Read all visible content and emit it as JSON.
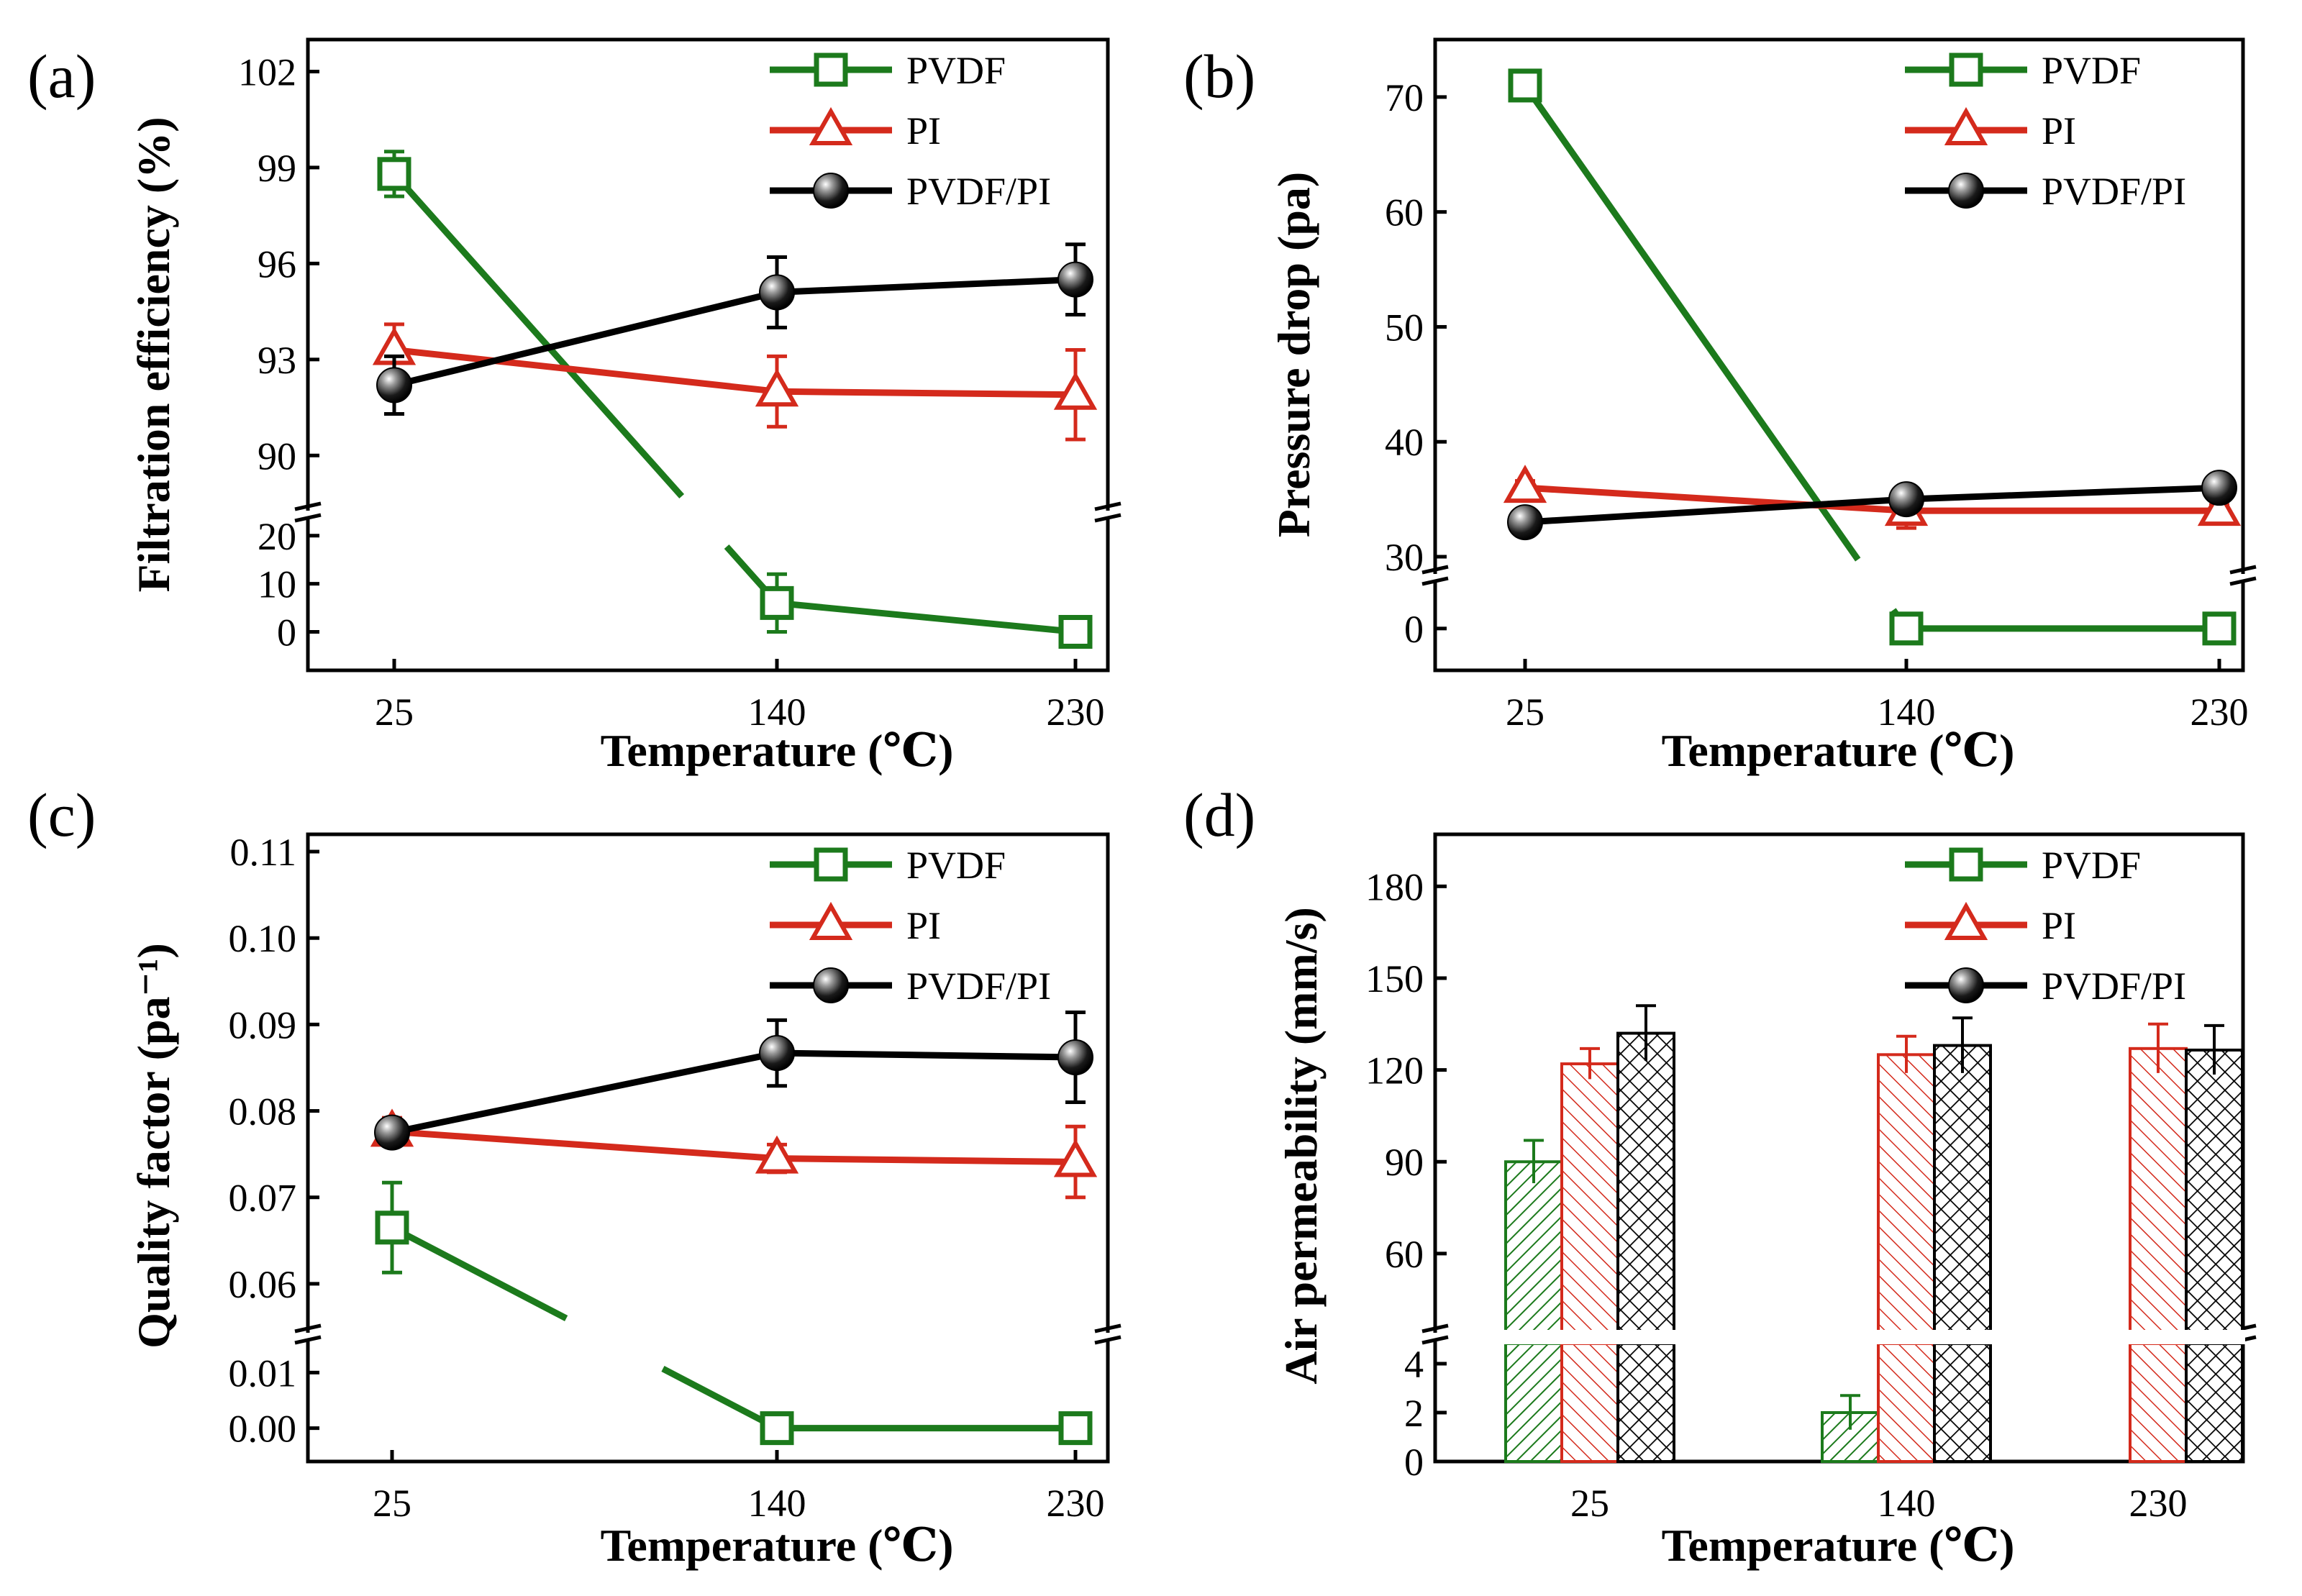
{
  "colors": {
    "PVDF": "#1c7a1c",
    "PI": "#d42a1c",
    "PVDF/PI": "#000000"
  },
  "chart_data": [
    {
      "id": "a",
      "panel_label": "(a)",
      "type": "line",
      "xlabel": "Temperature (℃)",
      "ylabel": "Filtration efficiency (%)",
      "categories": [
        "25",
        "140",
        "230"
      ],
      "y_upper_ticks": [
        "90",
        "93",
        "96",
        "99",
        "102"
      ],
      "y_lower_ticks": [
        "0",
        "10",
        "20"
      ],
      "y_upper_range": [
        88.5,
        103
      ],
      "y_lower_range": [
        -8,
        24
      ],
      "legend": [
        "PVDF",
        "PI",
        "PVDF/PI"
      ],
      "legend_position": "top-right",
      "series": [
        {
          "name": "PVDF",
          "marker": "square",
          "values": [
            98.8,
            6.0,
            0.0
          ],
          "errors": [
            0.7,
            6.0,
            0.0
          ]
        },
        {
          "name": "PI",
          "marker": "triangle",
          "values": [
            93.3,
            92.0,
            91.9
          ],
          "errors": [
            0.8,
            1.1,
            1.4
          ]
        },
        {
          "name": "PVDF/PI",
          "marker": "sphere",
          "values": [
            92.2,
            95.1,
            95.5
          ],
          "errors": [
            0.9,
            1.1,
            1.1
          ]
        }
      ]
    },
    {
      "id": "b",
      "panel_label": "(b)",
      "type": "line",
      "xlabel": "Temperature (℃)",
      "ylabel": "Pressure drop (pa)",
      "categories": [
        "25",
        "140",
        "230"
      ],
      "y_upper_ticks": [
        "30",
        "40",
        "50",
        "60",
        "70"
      ],
      "y_lower_ticks": [
        "0"
      ],
      "y_upper_range": [
        29,
        75
      ],
      "y_lower_range": [
        -3,
        3.5
      ],
      "legend": [
        "PVDF",
        "PI",
        "PVDF/PI"
      ],
      "legend_position": "top-right",
      "series": [
        {
          "name": "PVDF",
          "marker": "square",
          "values": [
            71,
            0,
            0
          ],
          "errors": [
            0.8,
            0,
            0
          ]
        },
        {
          "name": "PI",
          "marker": "triangle",
          "values": [
            36,
            34,
            34
          ],
          "errors": [
            0.6,
            1.5,
            0.5
          ]
        },
        {
          "name": "PVDF/PI",
          "marker": "sphere",
          "values": [
            33,
            35,
            36
          ],
          "errors": [
            0.6,
            0.9,
            0.6
          ]
        }
      ]
    },
    {
      "id": "c",
      "panel_label": "(c)",
      "type": "line",
      "xlabel": "Temperature (℃)",
      "ylabel": "Quality factor (pa⁻¹)",
      "categories": [
        "25",
        "140",
        "230"
      ],
      "y_upper_ticks": [
        "0.06",
        "0.07",
        "0.08",
        "0.09",
        "0.10",
        "0.11"
      ],
      "y_lower_ticks": [
        "0.00",
        "0.01"
      ],
      "y_upper_range": [
        0.055,
        0.112
      ],
      "y_lower_range": [
        -0.006,
        0.016
      ],
      "legend": [
        "PVDF",
        "PI",
        "PVDF/PI"
      ],
      "legend_position": "top-right",
      "series": [
        {
          "name": "PVDF",
          "marker": "square",
          "values": [
            0.0665,
            0.0,
            0.0
          ],
          "errors": [
            0.0052,
            0,
            0
          ]
        },
        {
          "name": "PI",
          "marker": "triangle",
          "values": [
            0.0776,
            0.0745,
            0.0741
          ],
          "errors": [
            0.0016,
            0.0016,
            0.0041
          ]
        },
        {
          "name": "PVDF/PI",
          "marker": "sphere",
          "values": [
            0.0775,
            0.0867,
            0.0862
          ],
          "errors": [
            0.0012,
            0.0038,
            0.0052
          ]
        }
      ]
    },
    {
      "id": "d",
      "panel_label": "(d)",
      "type": "bar",
      "xlabel": "Temperature (℃)",
      "ylabel": "Air permeability (mm/s)",
      "categories": [
        "25",
        "140",
        "230"
      ],
      "y_upper_ticks": [
        "60",
        "90",
        "120",
        "150",
        "180"
      ],
      "y_lower_ticks": [
        "0",
        "2",
        "4"
      ],
      "y_upper_range": [
        36,
        197
      ],
      "y_lower_range": [
        0,
        5
      ],
      "legend": [
        "PVDF",
        "PI",
        "PVDF/PI"
      ],
      "legend_position": "top-right",
      "series": [
        {
          "name": "PVDF",
          "marker": "square",
          "pattern": "hatch-right",
          "values": [
            90,
            2,
            null
          ],
          "errors": [
            7,
            0.7,
            null
          ]
        },
        {
          "name": "PI",
          "marker": "triangle",
          "pattern": "hatch-left",
          "values": [
            122,
            125,
            127
          ],
          "errors": [
            5,
            6,
            8
          ]
        },
        {
          "name": "PVDF/PI",
          "marker": "sphere",
          "pattern": "crosshatch",
          "values": [
            132,
            128,
            126.5
          ],
          "errors": [
            9,
            9,
            8
          ]
        }
      ]
    }
  ]
}
